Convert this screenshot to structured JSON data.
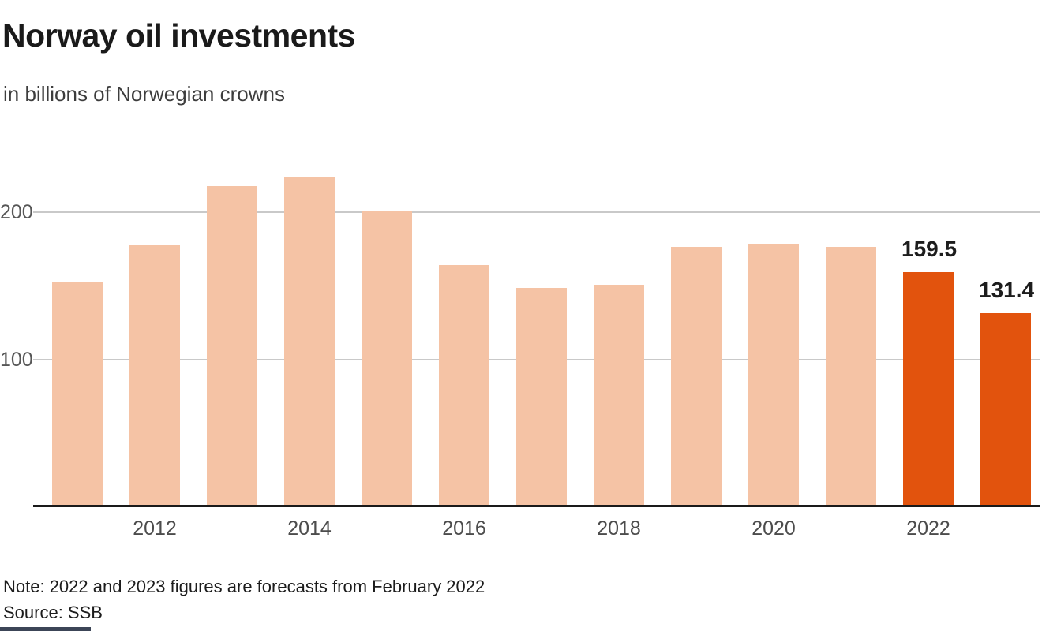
{
  "header": {
    "title": "Norway oil investments",
    "subtitle": "in billions of Norwegian crowns"
  },
  "footer": {
    "note": "Note: 2022 and 2023 figures are forecasts from February 2022",
    "source": "Source: SSB"
  },
  "chart_data": {
    "type": "bar",
    "title": "Norway oil investments",
    "subtitle": "in billions of Norwegian crowns",
    "unit": "billions of Norwegian crowns",
    "categories": [
      2011,
      2012,
      2013,
      2014,
      2015,
      2016,
      2017,
      2018,
      2019,
      2020,
      2021,
      2022,
      2023
    ],
    "values": [
      153,
      178,
      217.5,
      224,
      200.5,
      164,
      148.5,
      151,
      176.5,
      178.5,
      176.5,
      159.5,
      131.4
    ],
    "highlighted_categories": [
      2022,
      2023
    ],
    "value_labels": {
      "2022": "159.5",
      "2023": "131.4"
    },
    "x_tick_labels": [
      "2012",
      "2014",
      "2016",
      "2018",
      "2020",
      "2022"
    ],
    "y_ticks": [
      100,
      200
    ],
    "y_tick_labels": [
      "100",
      "200"
    ],
    "ylim": [
      0,
      235
    ],
    "grid": "horizontal gridlines at 100 and 200",
    "legend": "none",
    "colors": {
      "bar": "#f5c3a5",
      "highlight": "#e2530d",
      "grid": "#c9c9c9",
      "axis": "#1a1a1a",
      "value_label": "#1d1d1d",
      "brand_bar": "#3c4557"
    }
  }
}
